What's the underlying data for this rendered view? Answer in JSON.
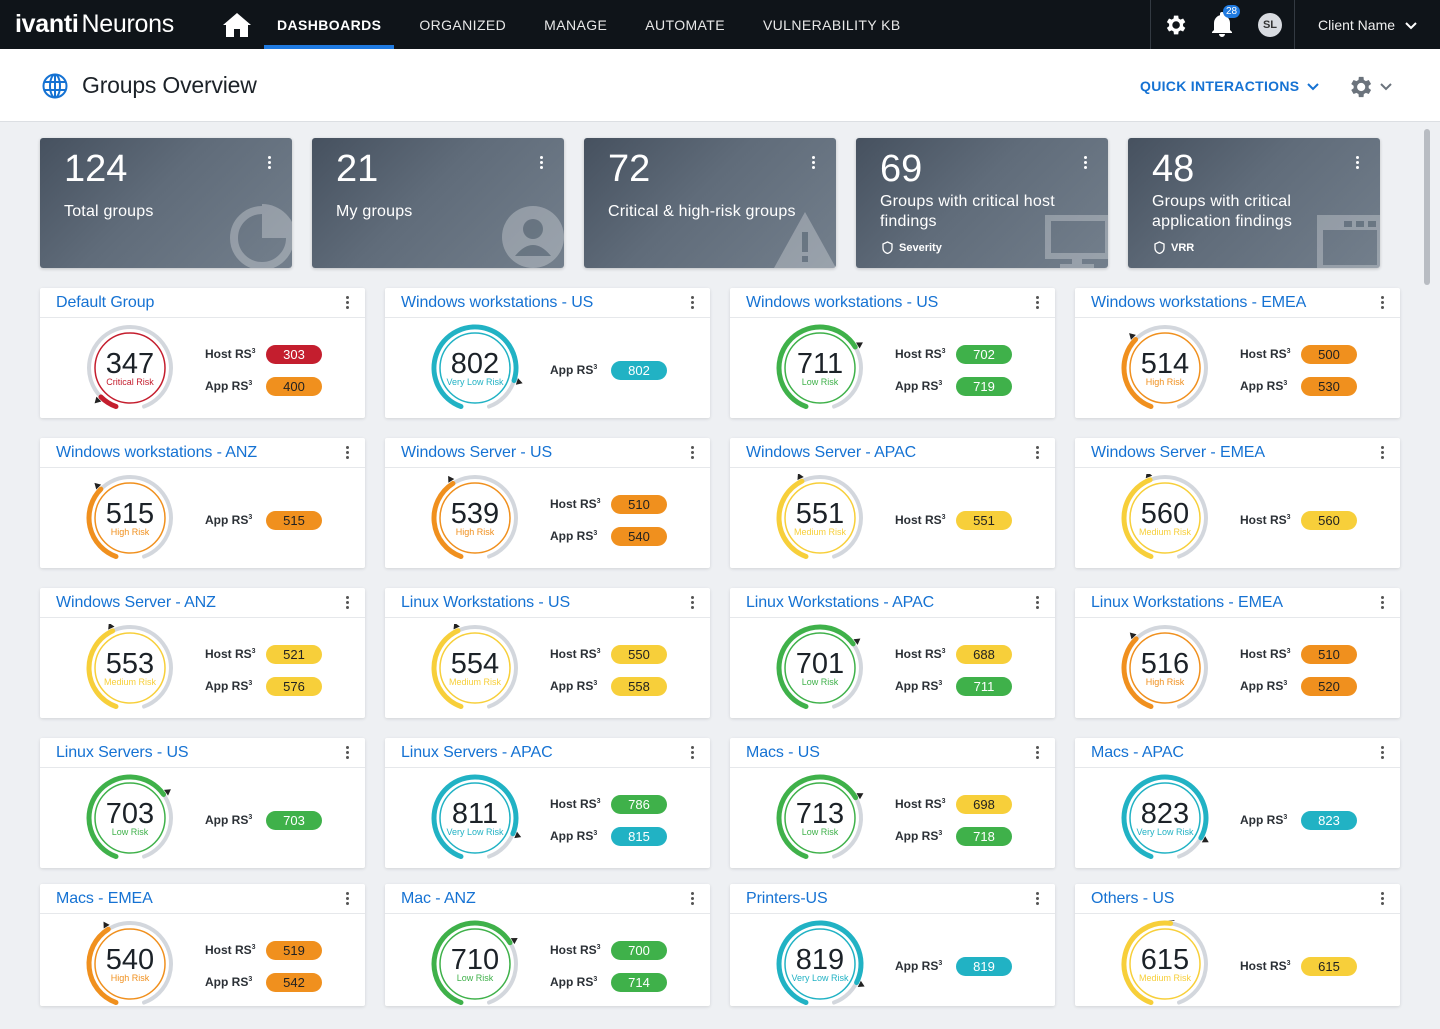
{
  "nav": {
    "brand": "ivanti",
    "product": "Neurons",
    "tabs": [
      "DASHBOARDS",
      "ORGANIZED",
      "MANAGE",
      "AUTOMATE",
      "VULNERABILITY KB"
    ],
    "active_tab": "DASHBOARDS",
    "notifications": "28",
    "avatar": "SL",
    "client": "Client Name"
  },
  "header": {
    "title": "Groups Overview",
    "quick": "QUICK INTERACTIONS"
  },
  "stats": [
    {
      "value": "124",
      "label": "Total groups",
      "icon": "pie-icon"
    },
    {
      "value": "21",
      "label": "My groups",
      "icon": "user-icon"
    },
    {
      "value": "72",
      "label": "Critical & high-risk groups",
      "icon": "warning-icon"
    },
    {
      "value": "69",
      "label": "Groups with critical host findings",
      "sub": "Severity",
      "icon": "monitor-icon"
    },
    {
      "value": "48",
      "label": "Groups with critical application findings",
      "sub": "VRR",
      "icon": "app-window-icon"
    }
  ],
  "risk_colors": {
    "Critical Risk": "#c41e2e",
    "High Risk": "#f0901e",
    "Medium Risk": "#f7cf3a",
    "Low Risk": "#3fb14a",
    "Very Low Risk": "#21b2c4"
  },
  "host_label": "Host RS",
  "app_label": "App RS",
  "groups": [
    {
      "name": "Default Group",
      "score": 347,
      "risk": "Critical Risk",
      "host": 303,
      "host_risk": "Critical Risk",
      "app": 400,
      "app_risk": "High Risk"
    },
    {
      "name": "Windows workstations - US",
      "score": 802,
      "risk": "Very Low Risk",
      "app": 802,
      "app_risk": "Very Low Risk"
    },
    {
      "name": "Windows workstations - US",
      "score": 711,
      "risk": "Low Risk",
      "host": 702,
      "host_risk": "Low Risk",
      "app": 719,
      "app_risk": "Low Risk"
    },
    {
      "name": "Windows workstations - EMEA",
      "score": 514,
      "risk": "High Risk",
      "host": 500,
      "host_risk": "High Risk",
      "app": 530,
      "app_risk": "High Risk"
    },
    {
      "name": "Windows workstations - ANZ",
      "score": 515,
      "risk": "High Risk",
      "app": 515,
      "app_risk": "High Risk"
    },
    {
      "name": "Windows Server - US",
      "score": 539,
      "risk": "High Risk",
      "host": 510,
      "host_risk": "High Risk",
      "app": 540,
      "app_risk": "High Risk"
    },
    {
      "name": "Windows Server - APAC",
      "score": 551,
      "risk": "Medium Risk",
      "host": 551,
      "host_risk": "Medium Risk"
    },
    {
      "name": "Windows Server - EMEA",
      "score": 560,
      "risk": "Medium Risk",
      "host": 560,
      "host_risk": "Medium Risk"
    },
    {
      "name": "Windows Server - ANZ",
      "score": 553,
      "risk": "Medium Risk",
      "host": 521,
      "host_risk": "Medium Risk",
      "app": 576,
      "app_risk": "Medium Risk"
    },
    {
      "name": "Linux Workstations - US",
      "score": 554,
      "risk": "Medium Risk",
      "host": 550,
      "host_risk": "Medium Risk",
      "app": 558,
      "app_risk": "Medium Risk"
    },
    {
      "name": "Linux Workstations - APAC",
      "score": 701,
      "risk": "Low Risk",
      "host": 688,
      "host_risk": "Medium Risk",
      "app": 711,
      "app_risk": "Low Risk"
    },
    {
      "name": "Linux Workstations - EMEA",
      "score": 516,
      "risk": "High Risk",
      "host": 510,
      "host_risk": "High Risk",
      "app": 520,
      "app_risk": "High Risk"
    },
    {
      "name": "Linux Servers - US",
      "score": 703,
      "risk": "Low Risk",
      "app": 703,
      "app_risk": "Low Risk"
    },
    {
      "name": "Linux Servers - APAC",
      "score": 811,
      "risk": "Very Low Risk",
      "host": 786,
      "host_risk": "Low Risk",
      "app": 815,
      "app_risk": "Very Low Risk"
    },
    {
      "name": "Macs - US",
      "score": 713,
      "risk": "Low Risk",
      "host": 698,
      "host_risk": "Medium Risk",
      "app": 718,
      "app_risk": "Low Risk"
    },
    {
      "name": "Macs - APAC",
      "score": 823,
      "risk": "Very Low Risk",
      "app": 823,
      "app_risk": "Very Low Risk"
    },
    {
      "name": "Macs - EMEA",
      "score": 540,
      "risk": "High Risk",
      "host": 519,
      "host_risk": "High Risk",
      "app": 542,
      "app_risk": "High Risk"
    },
    {
      "name": "Mac - ANZ",
      "score": 710,
      "risk": "Low Risk",
      "host": 700,
      "host_risk": "Low Risk",
      "app": 714,
      "app_risk": "Low Risk"
    },
    {
      "name": "Printers-US",
      "score": 819,
      "risk": "Very Low Risk",
      "app": 819,
      "app_risk": "Very Low Risk"
    },
    {
      "name": "Others - US",
      "score": 615,
      "risk": "Medium Risk",
      "host": 615,
      "host_risk": "Medium Risk"
    }
  ]
}
